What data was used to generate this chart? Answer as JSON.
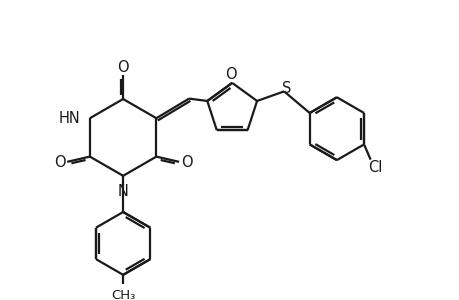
{
  "bg_color": "#ffffff",
  "line_color": "#1a1a1a",
  "line_width": 1.6,
  "dbo": 0.055,
  "font_size": 10.5,
  "fig_width": 4.6,
  "fig_height": 3.0,
  "dpi": 100,
  "xlim": [
    0,
    10
  ],
  "ylim": [
    0,
    6.5
  ]
}
